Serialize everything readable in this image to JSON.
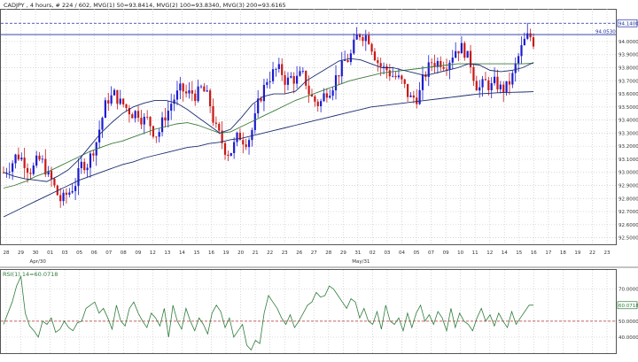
{
  "header": {
    "title": "CADJPY , 4 hours, # 224 / 602, MVG(1) 50=93.8414, MVG(2) 100=93.8340, MVG(3) 200=93.6165"
  },
  "chart_data": [
    {
      "type": "candlestick",
      "title": "CADJPY , 4 hours, # 224 / 602, MVG(1) 50=93.8414, MVG(2) 100=93.8340, MVG(3) 200=93.6165",
      "ylim": [
        92.45,
        94.25
      ],
      "y_ticks": [
        "94.0000",
        "93.9000",
        "93.8000",
        "93.7000",
        "93.6000",
        "93.5000",
        "93.4000",
        "93.3000",
        "93.2000",
        "93.1000",
        "93.0000",
        "92.9000",
        "92.8000",
        "92.7000",
        "92.6000",
        "92.5000"
      ],
      "x_ticks": [
        "28",
        "29",
        "30",
        "01",
        "03",
        "05",
        "06",
        "07",
        "08",
        "09",
        "12",
        "13",
        "14",
        "15",
        "16",
        "19",
        "20",
        "21",
        "22",
        "23",
        "26",
        "27",
        "28",
        "29",
        "31",
        "02",
        "03",
        "04",
        "05",
        "07",
        "09",
        "10",
        "11",
        "12",
        "14",
        "15",
        "16",
        "17",
        "18",
        "19",
        "22",
        "23"
      ],
      "x_month_labels": [
        "Apr/30",
        "May/31"
      ],
      "current_price": "94.1400",
      "resistance_level": "94.0530",
      "resistance_value": 94.053,
      "current_value": 94.14,
      "colors": {
        "up": "#1c1cd0",
        "down": "#c81818",
        "ma_main": "#1a2d6e",
        "ma_light": "#3b7a3b",
        "grid": "#c9c9c9",
        "level": "#1a2da0"
      },
      "series": [
        {
          "name": "MVG(1) 50",
          "value": 93.8414
        },
        {
          "name": "MVG(2) 100",
          "value": 93.834
        },
        {
          "name": "MVG(3) 200",
          "value": 93.6165
        }
      ],
      "ma50_values": [
        93.0,
        92.97,
        92.95,
        92.94,
        92.93,
        92.97,
        93.02,
        93.1,
        93.2,
        93.3,
        93.38,
        93.45,
        93.5,
        93.53,
        93.55,
        93.55,
        93.53,
        93.48,
        93.42,
        93.36,
        93.3,
        93.33,
        93.42,
        93.52,
        93.58,
        93.6,
        93.6,
        93.62,
        93.7,
        93.75,
        93.8,
        93.85,
        93.87,
        93.86,
        93.83,
        93.8,
        93.8,
        93.78,
        93.76,
        93.74,
        93.76,
        93.78,
        93.8,
        93.83,
        93.82,
        93.78,
        93.77,
        93.78,
        93.8,
        93.84
      ],
      "ma100_values": [
        92.88,
        92.9,
        92.93,
        92.97,
        93.0,
        93.04,
        93.08,
        93.12,
        93.16,
        93.19,
        93.22,
        93.24,
        93.27,
        93.3,
        93.33,
        93.35,
        93.37,
        93.38,
        93.36,
        93.33,
        93.3,
        93.31,
        93.35,
        93.39,
        93.43,
        93.47,
        93.51,
        93.55,
        93.58,
        93.61,
        93.64,
        93.67,
        93.7,
        93.72,
        93.74,
        93.76,
        93.77,
        93.78,
        93.79,
        93.8,
        93.81,
        93.82,
        93.83,
        93.83,
        93.83,
        93.83,
        93.83,
        93.83,
        93.83,
        93.834
      ],
      "ma200_values": [
        92.66,
        92.7,
        92.74,
        92.78,
        92.82,
        92.86,
        92.9,
        92.94,
        92.97,
        93.0,
        93.03,
        93.06,
        93.08,
        93.11,
        93.13,
        93.15,
        93.17,
        93.19,
        93.2,
        93.22,
        93.23,
        93.25,
        93.26,
        93.28,
        93.3,
        93.32,
        93.34,
        93.36,
        93.38,
        93.4,
        93.42,
        93.44,
        93.46,
        93.48,
        93.5,
        93.51,
        93.52,
        93.53,
        93.54,
        93.55,
        93.56,
        93.57,
        93.58,
        93.59,
        93.6,
        93.605,
        93.61,
        93.612,
        93.614,
        93.6165
      ]
    },
    {
      "type": "line",
      "title": "RSI(1) 14=60.0718",
      "ylim": [
        30,
        82
      ],
      "y_ticks": [
        "70.0000",
        "50.0000",
        "40.0000"
      ],
      "current_value_label": "60.0718",
      "reference_line": 50,
      "colors": {
        "line": "#2f7d3b",
        "ref": "#b03030"
      },
      "values": [
        48,
        55,
        62,
        72,
        78,
        55,
        47,
        44,
        40,
        50,
        48,
        52,
        43,
        45,
        50,
        46,
        44,
        49,
        50,
        58,
        60,
        62,
        55,
        58,
        52,
        45,
        60,
        50,
        47,
        58,
        62,
        55,
        50,
        46,
        55,
        52,
        47,
        58,
        40,
        60,
        50,
        45,
        58,
        50,
        44,
        52,
        48,
        42,
        55,
        60,
        56,
        46,
        52,
        40,
        44,
        48,
        35,
        32,
        38,
        36,
        55,
        66,
        62,
        58,
        52,
        48,
        54,
        46,
        50,
        55,
        60,
        62,
        68,
        65,
        66,
        72,
        70,
        66,
        62,
        58,
        64,
        62,
        52,
        58,
        50,
        48,
        56,
        45,
        60,
        50,
        48,
        52,
        44,
        55,
        46,
        55,
        60,
        50,
        54,
        48,
        56,
        52,
        44,
        58,
        46,
        55,
        50,
        48,
        44,
        52,
        58,
        50,
        54,
        47,
        55,
        50,
        46,
        56,
        48,
        52,
        56,
        60,
        60
      ]
    }
  ]
}
